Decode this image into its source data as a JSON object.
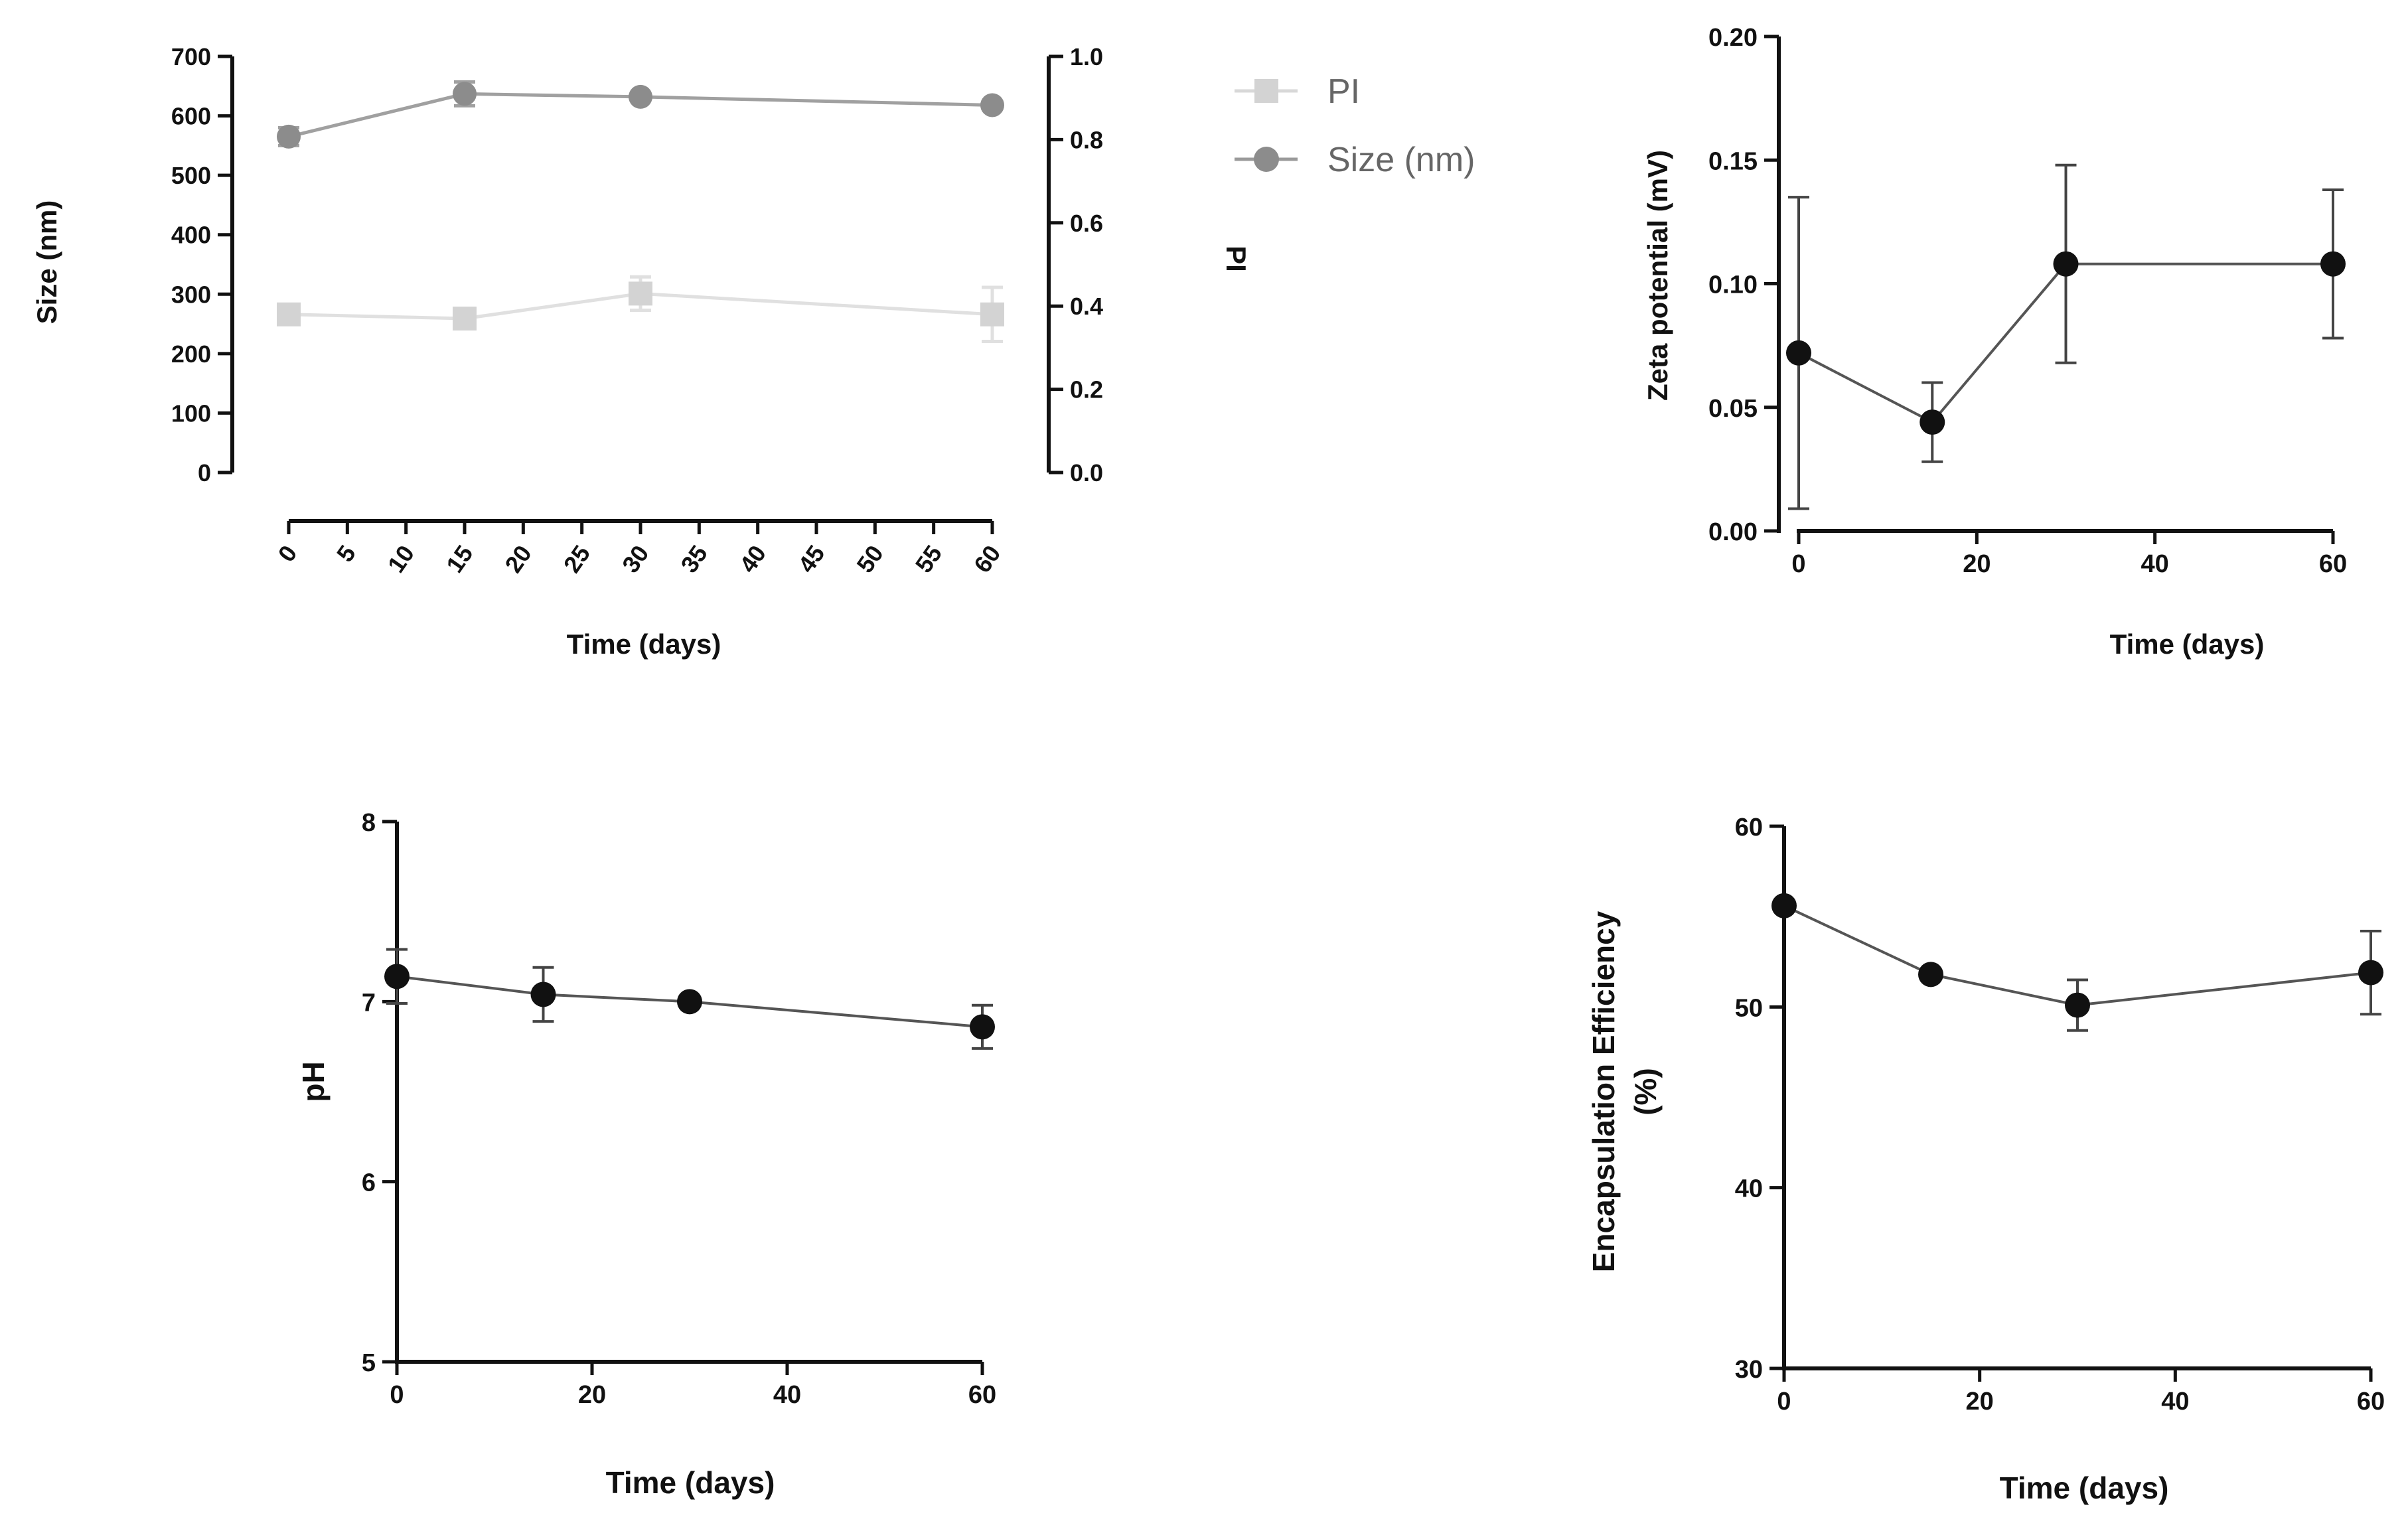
{
  "chart_data": [
    {
      "id": "size_pi",
      "type": "line",
      "xlabel": "Time (days)",
      "ylabel": "Size (nm)",
      "y2label": "PI",
      "xlim": [
        0,
        60
      ],
      "ylim": [
        0,
        700
      ],
      "y2lim": [
        0,
        1.0
      ],
      "xticks": [
        0,
        5,
        10,
        15,
        20,
        25,
        30,
        35,
        40,
        45,
        50,
        55,
        60
      ],
      "xtick_labels": [
        "0",
        "5",
        "10",
        "15",
        "20",
        "25",
        "30",
        "35",
        "40",
        "45",
        "50",
        "55",
        "60"
      ],
      "yticks": [
        0,
        100,
        200,
        300,
        400,
        500,
        600,
        700
      ],
      "ytick_labels": [
        "0",
        "100",
        "200",
        "300",
        "400",
        "500",
        "600",
        "700"
      ],
      "y2ticks": [
        0,
        0.2,
        0.4,
        0.6,
        0.8,
        1.0
      ],
      "y2tick_labels": [
        "0.0",
        "0.2",
        "0.4",
        "0.6",
        "0.8",
        "1.0"
      ],
      "legend": [
        "PI",
        "Size (nm)"
      ],
      "series": [
        {
          "name": "PI",
          "axis": "right",
          "marker": "square",
          "color": "#d3d3d3",
          "x": [
            0,
            15,
            30,
            60
          ],
          "values": [
            0.38,
            0.37,
            0.43,
            0.38
          ],
          "errors": [
            0.015,
            0.015,
            0.04,
            0.065
          ]
        },
        {
          "name": "Size (nm)",
          "axis": "left",
          "marker": "circle",
          "color": "#8c8c8c",
          "x": [
            0,
            15,
            30,
            60
          ],
          "values": [
            565,
            637,
            632,
            618
          ],
          "errors": [
            15,
            20,
            0,
            0
          ]
        }
      ]
    },
    {
      "id": "zeta",
      "type": "line",
      "xlabel": "Time (days)",
      "ylabel": "Zeta potential (mV)",
      "xlim": [
        0,
        60
      ],
      "ylim": [
        0,
        0.2
      ],
      "xticks": [
        0,
        20,
        40,
        60
      ],
      "xtick_labels": [
        "0",
        "20",
        "40",
        "60"
      ],
      "yticks": [
        0,
        0.05,
        0.1,
        0.15,
        0.2
      ],
      "ytick_labels": [
        "0.00",
        "0.05",
        "0.10",
        "0.15",
        "0.20"
      ],
      "series": [
        {
          "name": "Zeta potential",
          "marker": "circle",
          "color": "#111111",
          "x": [
            0,
            15,
            30,
            60
          ],
          "values": [
            0.072,
            0.044,
            0.108,
            0.108
          ],
          "errors": [
            0.063,
            0.016,
            0.04,
            0.03
          ]
        }
      ]
    },
    {
      "id": "ph",
      "type": "line",
      "xlabel": "Time (days)",
      "ylabel": "pH",
      "xlim": [
        0,
        60
      ],
      "ylim": [
        5,
        8
      ],
      "xticks": [
        0,
        20,
        40,
        60
      ],
      "xtick_labels": [
        "0",
        "20",
        "40",
        "60"
      ],
      "yticks": [
        5,
        6,
        7,
        8
      ],
      "ytick_labels": [
        "5",
        "6",
        "7",
        "8"
      ],
      "series": [
        {
          "name": "pH",
          "marker": "circle",
          "color": "#111111",
          "x": [
            0,
            15,
            30,
            60
          ],
          "values": [
            7.14,
            7.04,
            7.0,
            6.86
          ],
          "errors": [
            0.15,
            0.15,
            0.0,
            0.12
          ]
        }
      ]
    },
    {
      "id": "ee",
      "type": "line",
      "xlabel": "Time (days)",
      "ylabel": "Encapsulation Efficiency",
      "ylabel2": "(%)",
      "xlim": [
        0,
        60
      ],
      "ylim": [
        30,
        60
      ],
      "xticks": [
        0,
        20,
        40,
        60
      ],
      "xtick_labels": [
        "0",
        "20",
        "40",
        "60"
      ],
      "yticks": [
        30,
        40,
        50,
        60
      ],
      "ytick_labels": [
        "30",
        "40",
        "50",
        "60"
      ],
      "series": [
        {
          "name": "Encapsulation Efficiency",
          "marker": "circle",
          "color": "#111111",
          "x": [
            0,
            15,
            30,
            60
          ],
          "values": [
            55.6,
            51.8,
            50.1,
            51.9
          ],
          "errors": [
            0.0,
            0.0,
            1.4,
            2.3
          ]
        }
      ]
    }
  ]
}
